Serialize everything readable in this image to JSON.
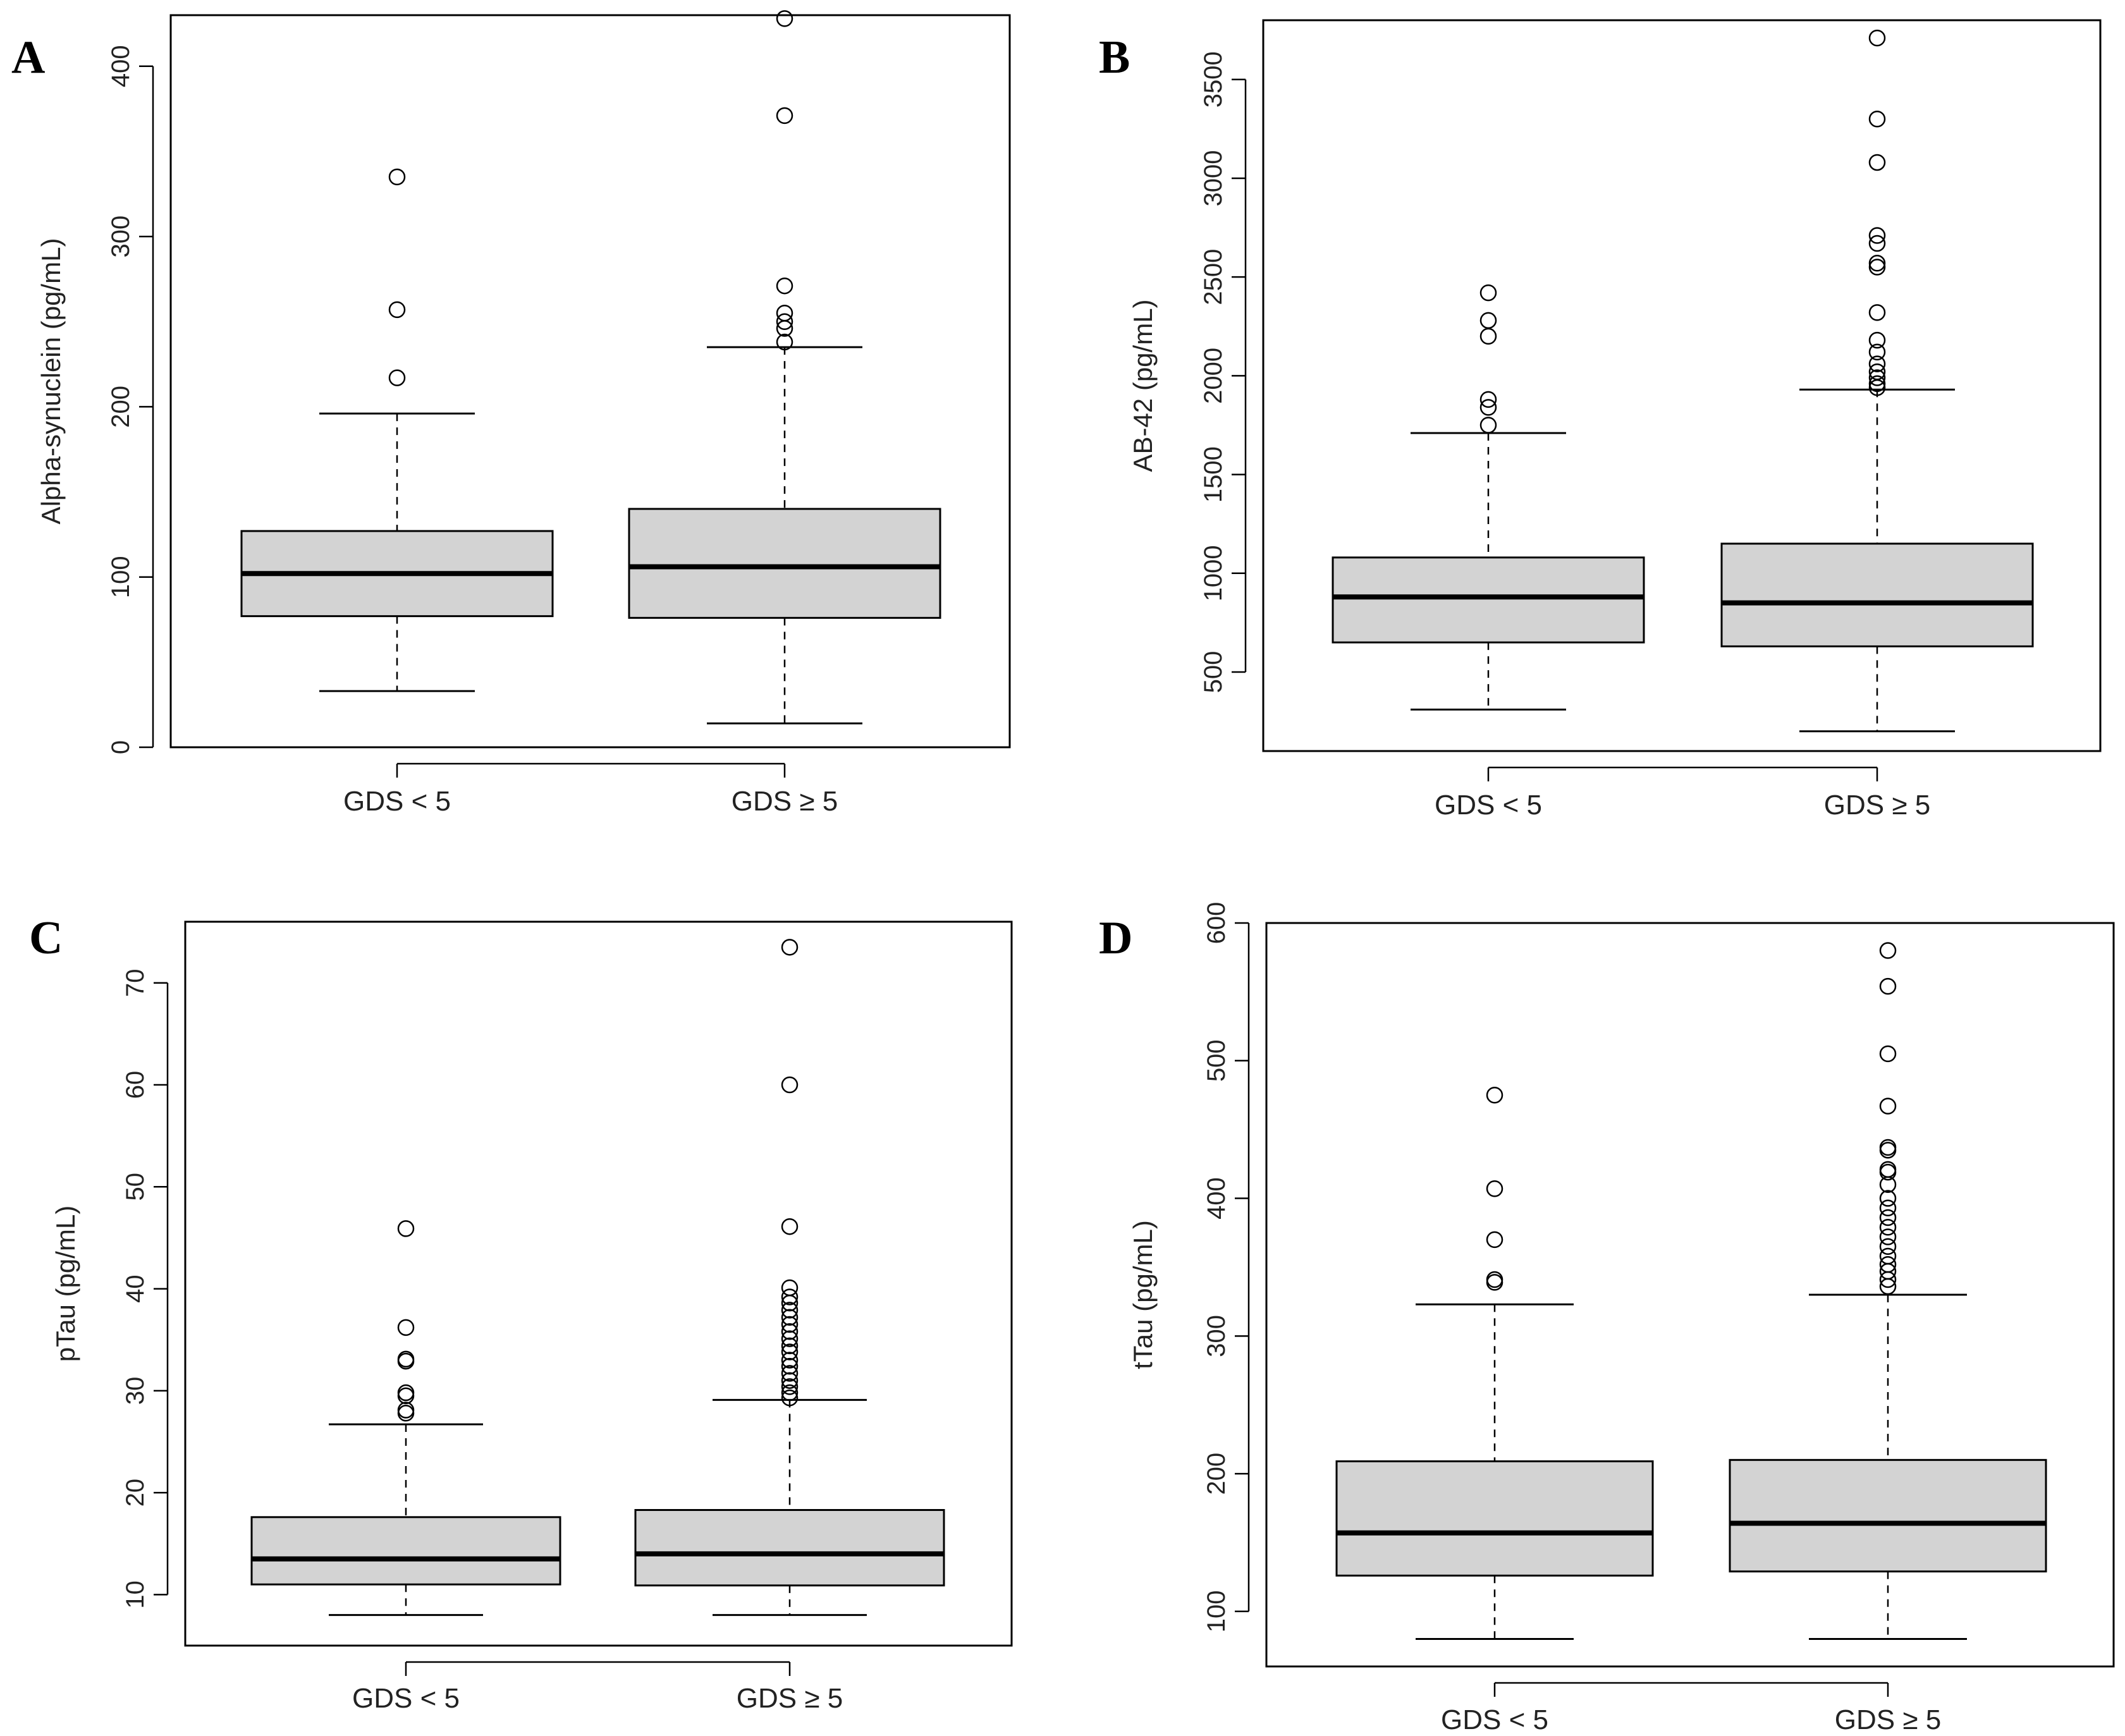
{
  "figure": {
    "chart_data": [
      {
        "type": "boxplot",
        "panel": "A",
        "title": "",
        "xlabel": "",
        "ylabel": "Alpha-synuclein (pg/mL)",
        "ylim": [
          0,
          430
        ],
        "yticks": [
          "0",
          "100",
          "200",
          "300",
          "400"
        ],
        "categories": [
          "GDS < 5",
          "GDS ≥ 5"
        ],
        "boxes": [
          {
            "whisker_low": 33,
            "q1": 77,
            "median": 102,
            "q3": 127,
            "whisker_high": 196,
            "outliers": [
              217,
              257,
              335
            ]
          },
          {
            "whisker_low": 14,
            "q1": 76,
            "median": 106,
            "q3": 140,
            "whisker_high": 235,
            "outliers": [
              238,
              246,
              250,
              255,
              271,
              371,
              428
            ]
          }
        ]
      },
      {
        "type": "boxplot",
        "panel": "B",
        "title": "",
        "xlabel": "",
        "ylabel": "AB-42 (pg/mL)",
        "ylim": [
          100,
          3800
        ],
        "yticks": [
          "500",
          "1000",
          "1500",
          "2000",
          "2500",
          "3000",
          "3500"
        ],
        "categories": [
          "GDS < 5",
          "GDS ≥ 5"
        ],
        "boxes": [
          {
            "whisker_low": 310,
            "q1": 650,
            "median": 880,
            "q3": 1080,
            "whisker_high": 1710,
            "outliers": [
              1750,
              1840,
              1880,
              2200,
              2280,
              2420
            ]
          },
          {
            "whisker_low": 200,
            "q1": 630,
            "median": 850,
            "q3": 1150,
            "whisker_high": 1930,
            "outliers": [
              1940,
              1960,
              1990,
              2020,
              2060,
              2120,
              2180,
              2320,
              2550,
              2570,
              2670,
              2710,
              3080,
              3300,
              3710
            ]
          }
        ]
      },
      {
        "type": "boxplot",
        "panel": "C",
        "title": "",
        "xlabel": "",
        "ylabel": "pTau (pg/mL)",
        "ylim": [
          5,
          76
        ],
        "yticks": [
          "10",
          "20",
          "30",
          "40",
          "50",
          "60",
          "70"
        ],
        "categories": [
          "GDS < 5",
          "GDS ≥ 5"
        ],
        "boxes": [
          {
            "whisker_low": 8,
            "q1": 11,
            "median": 13.5,
            "q3": 17.6,
            "whisker_high": 26.7,
            "outliers": [
              27.8,
              28.1,
              29.5,
              29.8,
              32.9,
              33.1,
              36.2,
              45.9
            ]
          },
          {
            "whisker_low": 8,
            "q1": 10.9,
            "median": 14,
            "q3": 18.3,
            "whisker_high": 29.1,
            "outliers": [
              29.3,
              29.8,
              30.4,
              31.0,
              31.7,
              32.4,
              33.0,
              33.8,
              34.4,
              35.1,
              35.8,
              36.5,
              37.2,
              37.9,
              38.6,
              39.2,
              40.1,
              46.1,
              60.0,
              73.5
            ]
          }
        ]
      },
      {
        "type": "boxplot",
        "panel": "D",
        "title": "",
        "xlabel": "",
        "ylabel": "tTau (pg/mL)",
        "ylim": [
          60,
          600
        ],
        "yticks": [
          "100",
          "200",
          "300",
          "400",
          "500",
          "600"
        ],
        "categories": [
          "GDS < 5",
          "GDS ≥ 5"
        ],
        "boxes": [
          {
            "whisker_low": 80,
            "q1": 126,
            "median": 157,
            "q3": 209,
            "whisker_high": 323,
            "outliers": [
              339,
              341,
              370,
              407,
              475
            ]
          },
          {
            "whisker_low": 80,
            "q1": 129,
            "median": 164,
            "q3": 210,
            "whisker_high": 330,
            "outliers": [
              336,
              341,
              347,
              352,
              358,
              365,
              372,
              379,
              386,
              393,
              400,
              410,
              419,
              421,
              435,
              437,
              467,
              505,
              554,
              580
            ]
          }
        ]
      }
    ]
  }
}
